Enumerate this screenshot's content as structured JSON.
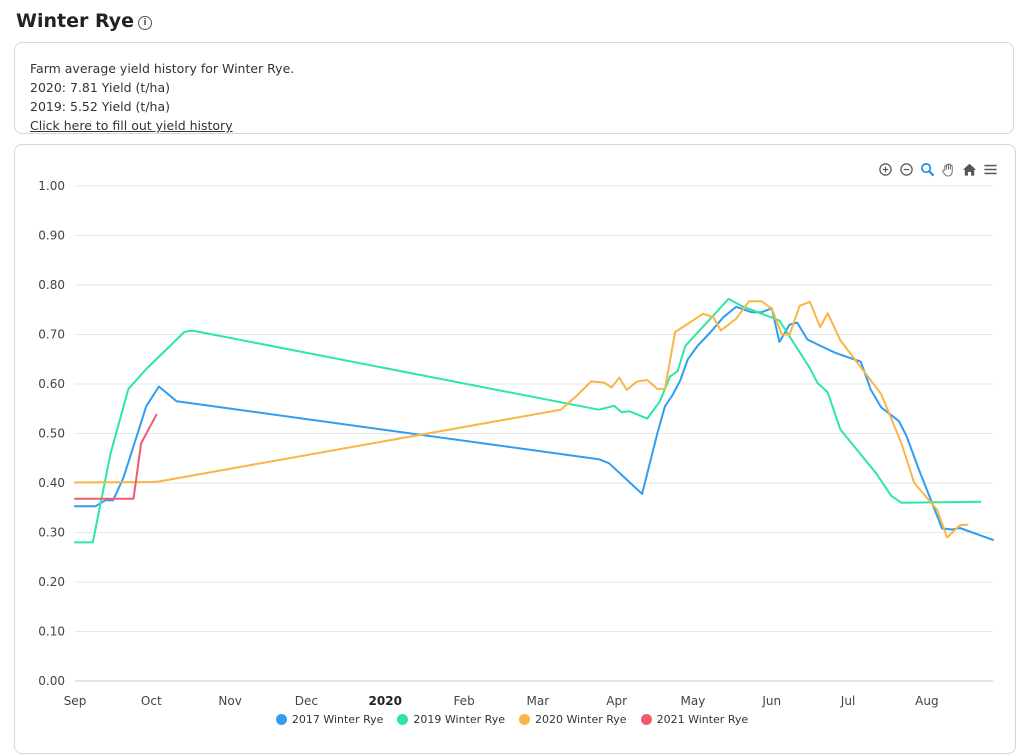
{
  "header": {
    "title": "Winter Rye",
    "info_icon": "info-icon"
  },
  "info": {
    "line1": "Farm average yield history for Winter Rye.",
    "line2": "2020: 7.81 Yield (t/ha)",
    "line3": "2019: 5.52 Yield (t/ha)",
    "link": "Click here to fill out yield history"
  },
  "toolbar": [
    "zoom-in-icon",
    "zoom-out-icon",
    "zoom-select-icon",
    "pan-hand-icon",
    "home-icon",
    "menu-icon"
  ],
  "colors": {
    "s2017": "#2e9df2",
    "s2019": "#2ee6a4",
    "s2020": "#f9b545",
    "s2021": "#f25a6e",
    "accent": "#1e88e5"
  },
  "chart_data": {
    "type": "line",
    "x_ticks": [
      "Sep",
      "Oct",
      "Nov",
      "Dec",
      "2020",
      "Feb",
      "Mar",
      "Apr",
      "May",
      "Jun",
      "Jul",
      "Aug"
    ],
    "x_tick_bold": [
      false,
      false,
      false,
      false,
      true,
      false,
      false,
      false,
      false,
      false,
      false,
      false
    ],
    "x_tick_dates": [
      "2019-09-01",
      "2019-10-01",
      "2019-11-01",
      "2019-12-01",
      "2020-01-01",
      "2020-02-01",
      "2020-03-01",
      "2020-04-01",
      "2020-05-01",
      "2020-06-01",
      "2020-07-01",
      "2020-08-01"
    ],
    "xlim": [
      "2019-09-01",
      "2020-08-27"
    ],
    "ylim": [
      0,
      1
    ],
    "y_ticks": [
      "0.00",
      "0.10",
      "0.20",
      "0.30",
      "0.40",
      "0.50",
      "0.60",
      "0.70",
      "0.80",
      "0.90",
      "1.00"
    ],
    "grid": true,
    "legend_position": "bottom",
    "series": [
      {
        "name": "2017 Winter Rye",
        "points": [
          [
            "2019-09-01",
            0.353
          ],
          [
            "2019-09-09",
            0.353
          ],
          [
            "2019-09-13",
            0.365
          ],
          [
            "2019-09-16",
            0.365
          ],
          [
            "2019-09-20",
            0.41
          ],
          [
            "2019-09-25",
            0.49
          ],
          [
            "2019-09-29",
            0.555
          ],
          [
            "2019-10-04",
            0.595
          ],
          [
            "2019-10-11",
            0.565
          ],
          [
            "2020-03-25",
            0.448
          ],
          [
            "2020-03-29",
            0.44
          ],
          [
            "2020-04-11",
            0.378
          ],
          [
            "2020-04-17",
            0.5
          ],
          [
            "2020-04-20",
            0.555
          ],
          [
            "2020-04-23",
            0.578
          ],
          [
            "2020-04-26",
            0.607
          ],
          [
            "2020-04-29",
            0.65
          ],
          [
            "2020-05-03",
            0.678
          ],
          [
            "2020-05-08",
            0.705
          ],
          [
            "2020-05-13",
            0.735
          ],
          [
            "2020-05-18",
            0.756
          ],
          [
            "2020-05-24",
            0.745
          ],
          [
            "2020-05-28",
            0.745
          ],
          [
            "2020-06-01",
            0.753
          ],
          [
            "2020-06-04",
            0.685
          ],
          [
            "2020-06-08",
            0.72
          ],
          [
            "2020-06-11",
            0.724
          ],
          [
            "2020-06-15",
            0.69
          ],
          [
            "2020-06-21",
            0.675
          ],
          [
            "2020-06-26",
            0.663
          ],
          [
            "2020-07-06",
            0.645
          ],
          [
            "2020-07-10",
            0.588
          ],
          [
            "2020-07-14",
            0.553
          ],
          [
            "2020-07-21",
            0.525
          ],
          [
            "2020-07-24",
            0.495
          ],
          [
            "2020-07-29",
            0.425
          ],
          [
            "2020-08-03",
            0.36
          ],
          [
            "2020-08-07",
            0.308
          ],
          [
            "2020-08-11",
            0.306
          ],
          [
            "2020-08-14",
            0.309
          ],
          [
            "2020-08-27",
            0.285
          ]
        ]
      },
      {
        "name": "2019 Winter Rye",
        "points": [
          [
            "2019-09-01",
            0.28
          ],
          [
            "2019-09-08",
            0.28
          ],
          [
            "2019-09-15",
            0.46
          ],
          [
            "2019-09-22",
            0.59
          ],
          [
            "2019-09-29",
            0.63
          ],
          [
            "2019-10-14",
            0.705
          ],
          [
            "2019-10-17",
            0.708
          ],
          [
            "2020-03-25",
            0.548
          ],
          [
            "2020-03-31",
            0.556
          ],
          [
            "2020-04-03",
            0.543
          ],
          [
            "2020-04-06",
            0.545
          ],
          [
            "2020-04-13",
            0.53
          ],
          [
            "2020-04-18",
            0.565
          ],
          [
            "2020-04-22",
            0.615
          ],
          [
            "2020-04-25",
            0.626
          ],
          [
            "2020-04-28",
            0.677
          ],
          [
            "2020-05-15",
            0.772
          ],
          [
            "2020-05-20",
            0.758
          ],
          [
            "2020-06-04",
            0.728
          ],
          [
            "2020-06-16",
            0.632
          ],
          [
            "2020-06-19",
            0.602
          ],
          [
            "2020-06-23",
            0.583
          ],
          [
            "2020-06-28",
            0.508
          ],
          [
            "2020-07-12",
            0.42
          ],
          [
            "2020-07-18",
            0.374
          ],
          [
            "2020-07-22",
            0.36
          ],
          [
            "2020-08-22",
            0.362
          ]
        ]
      },
      {
        "name": "2020 Winter Rye",
        "points": [
          [
            "2019-09-01",
            0.401
          ],
          [
            "2019-10-01",
            0.402
          ],
          [
            "2019-10-04",
            0.403
          ],
          [
            "2020-03-10",
            0.548
          ],
          [
            "2020-03-16",
            0.575
          ],
          [
            "2020-03-22",
            0.605
          ],
          [
            "2020-03-27",
            0.603
          ],
          [
            "2020-03-30",
            0.593
          ],
          [
            "2020-04-02",
            0.613
          ],
          [
            "2020-04-05",
            0.588
          ],
          [
            "2020-04-09",
            0.605
          ],
          [
            "2020-04-13",
            0.608
          ],
          [
            "2020-04-17",
            0.59
          ],
          [
            "2020-04-20",
            0.59
          ],
          [
            "2020-04-24",
            0.705
          ],
          [
            "2020-04-27",
            0.715
          ],
          [
            "2020-05-05",
            0.742
          ],
          [
            "2020-05-09",
            0.735
          ],
          [
            "2020-05-12",
            0.708
          ],
          [
            "2020-05-18",
            0.732
          ],
          [
            "2020-05-23",
            0.767
          ],
          [
            "2020-05-28",
            0.767
          ],
          [
            "2020-06-01",
            0.752
          ],
          [
            "2020-06-05",
            0.7
          ],
          [
            "2020-06-08",
            0.7
          ],
          [
            "2020-06-12",
            0.758
          ],
          [
            "2020-06-16",
            0.766
          ],
          [
            "2020-06-20",
            0.715
          ],
          [
            "2020-06-23",
            0.743
          ],
          [
            "2020-06-28",
            0.688
          ],
          [
            "2020-07-14",
            0.58
          ],
          [
            "2020-07-22",
            0.48
          ],
          [
            "2020-07-27",
            0.4
          ],
          [
            "2020-08-05",
            0.346
          ],
          [
            "2020-08-09",
            0.29
          ],
          [
            "2020-08-14",
            0.315
          ],
          [
            "2020-08-17",
            0.316
          ]
        ]
      },
      {
        "name": "2021 Winter Rye",
        "points": [
          [
            "2019-09-01",
            0.368
          ],
          [
            "2019-09-24",
            0.368
          ],
          [
            "2019-09-27",
            0.48
          ],
          [
            "2019-10-03",
            0.538
          ]
        ]
      }
    ]
  }
}
